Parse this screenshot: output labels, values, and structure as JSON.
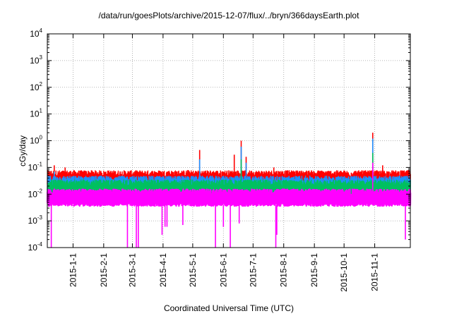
{
  "chart_data": {
    "type": "line",
    "title": "/data/run/goesPlots/archive/2015-12-07/flux/../bryn/366daysEarth.plot",
    "xlabel": "Coordinated Universal Time (UTC)",
    "ylabel": "cGy/day",
    "y_scale": "log",
    "ylim": [
      0.0001,
      10000
    ],
    "xlim": [
      "2015-12-06",
      "2016-12-07"
    ],
    "grid": true,
    "legend": "none",
    "y_ticks": [
      {
        "base": "10",
        "exp": "-4",
        "value": 0.0001
      },
      {
        "base": "10",
        "exp": "-3",
        "value": 0.001
      },
      {
        "base": "10",
        "exp": "-2",
        "value": 0.01
      },
      {
        "base": "10",
        "exp": "-1",
        "value": 0.1
      },
      {
        "base": "10",
        "exp": "0",
        "value": 1
      },
      {
        "base": "10",
        "exp": "1",
        "value": 10
      },
      {
        "base": "10",
        "exp": "2",
        "value": 100
      },
      {
        "base": "10",
        "exp": "3",
        "value": 1000
      },
      {
        "base": "10",
        "exp": "4",
        "value": 10000
      }
    ],
    "x_ticks": [
      {
        "label": "2015-1-1",
        "date": "2016-01-01"
      },
      {
        "label": "2015-2-1",
        "date": "2016-02-01"
      },
      {
        "label": "2015-3-1",
        "date": "2016-03-01"
      },
      {
        "label": "2015-4-1",
        "date": "2016-04-01"
      },
      {
        "label": "2015-5-1",
        "date": "2016-05-01"
      },
      {
        "label": "2015-6-1",
        "date": "2016-06-01"
      },
      {
        "label": "2015-7-1",
        "date": "2016-07-01"
      },
      {
        "label": "2015-8-1",
        "date": "2016-08-01"
      },
      {
        "label": "2015-9-1",
        "date": "2016-09-01"
      },
      {
        "label": "2015-10-1",
        "date": "2016-10-01"
      },
      {
        "label": "2015-11-1",
        "date": "2016-11-01"
      }
    ],
    "series": [
      {
        "color": "#ff0000",
        "baseline": 0.04,
        "spikes": [
          {
            "date": "2015-12-13",
            "value": 0.12
          },
          {
            "date": "2015-12-24",
            "value": 0.1
          },
          {
            "date": "2016-02-10",
            "value": 0.06
          },
          {
            "date": "2016-03-16",
            "value": 0.07
          },
          {
            "date": "2016-04-26",
            "value": 0.08
          },
          {
            "date": "2016-05-08",
            "value": 0.45
          },
          {
            "date": "2016-06-12",
            "value": 0.3
          },
          {
            "date": "2016-06-19",
            "value": 1.0
          },
          {
            "date": "2016-06-24",
            "value": 0.25
          },
          {
            "date": "2016-07-22",
            "value": 0.1
          },
          {
            "date": "2016-09-05",
            "value": 0.06
          },
          {
            "date": "2016-10-30",
            "value": 2.0
          },
          {
            "date": "2016-11-09",
            "value": 0.12
          }
        ]
      },
      {
        "color": "#1e90ff",
        "baseline": 0.025,
        "spikes": [
          {
            "date": "2015-12-13",
            "value": 0.07
          },
          {
            "date": "2016-05-08",
            "value": 0.2
          },
          {
            "date": "2016-06-19",
            "value": 0.6
          },
          {
            "date": "2016-06-24",
            "value": 0.15
          },
          {
            "date": "2016-10-30",
            "value": 1.2
          }
        ]
      },
      {
        "color": "#00c060",
        "baseline": 0.018,
        "spikes": [
          {
            "date": "2016-06-19",
            "value": 0.2
          },
          {
            "date": "2016-10-30",
            "value": 0.35
          }
        ]
      },
      {
        "color": "#ff00ff",
        "baseline": 0.008,
        "spikes": [
          {
            "date": "2016-10-30",
            "value": 0.15
          }
        ],
        "dips": [
          {
            "date": "2015-12-10",
            "value": 0.0001
          },
          {
            "date": "2016-02-25",
            "value": 0.0001
          },
          {
            "date": "2016-03-05",
            "value": 0.0001
          },
          {
            "date": "2016-03-07",
            "value": 0.0001
          },
          {
            "date": "2016-03-31",
            "value": 0.0003
          },
          {
            "date": "2016-04-03",
            "value": 0.0006
          },
          {
            "date": "2016-04-05",
            "value": 0.0006
          },
          {
            "date": "2016-04-21",
            "value": 0.0007
          },
          {
            "date": "2016-05-24",
            "value": 0.0001
          },
          {
            "date": "2016-06-01",
            "value": 0.0006
          },
          {
            "date": "2016-06-08",
            "value": 0.0001
          },
          {
            "date": "2016-06-17",
            "value": 0.0008
          },
          {
            "date": "2016-07-24",
            "value": 0.0001
          },
          {
            "date": "2016-07-25",
            "value": 0.0003
          },
          {
            "date": "2016-12-02",
            "value": 0.0002
          }
        ]
      }
    ]
  }
}
